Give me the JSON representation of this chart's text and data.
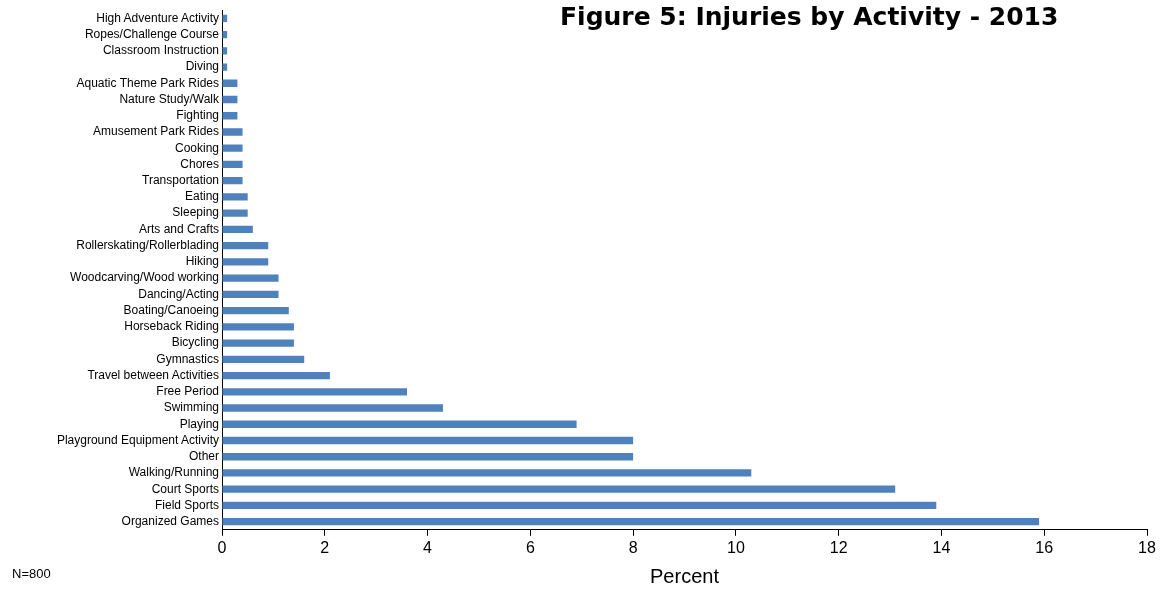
{
  "chart_data": {
    "type": "bar",
    "orientation": "horizontal",
    "title": "Figure 5: Injuries by Activity - 2013",
    "xlabel": "Percent",
    "annotations": [
      "N=800"
    ],
    "categories": [
      "High Adventure Activity",
      "Ropes/Challenge Course",
      "Classroom Instruction",
      "Diving",
      "Aquatic Theme Park Rides",
      "Nature Study/Walk",
      "Fighting",
      "Amusement Park Rides",
      "Cooking",
      "Chores",
      "Transportation",
      "Eating",
      "Sleeping",
      "Arts and Crafts",
      "Rollerskating/Rollerblading",
      "Hiking",
      "Woodcarving/Wood working",
      "Dancing/Acting",
      "Boating/Canoeing",
      "Horseback Riding",
      "Bicycling",
      "Gymnastics",
      "Travel between Activities",
      "Free Period",
      "Swimming",
      "Playing",
      "Playground Equipment Activity",
      "Other",
      "Walking/Running",
      "Court Sports",
      "Field Sports",
      "Organized Games"
    ],
    "values": [
      0.1,
      0.1,
      0.1,
      0.1,
      0.3,
      0.3,
      0.3,
      0.4,
      0.4,
      0.4,
      0.4,
      0.5,
      0.5,
      0.6,
      0.9,
      0.9,
      1.1,
      1.1,
      1.3,
      1.4,
      1.4,
      1.6,
      2.1,
      3.6,
      4.3,
      6.9,
      8,
      8,
      10.3,
      13.1,
      13.9,
      15.9
    ],
    "color": "#4f81bd",
    "xlim": [
      0,
      18
    ],
    "xticks": [
      0,
      2,
      4,
      6,
      8,
      10,
      12,
      14,
      16,
      18
    ],
    "grid": false,
    "legend": false
  }
}
